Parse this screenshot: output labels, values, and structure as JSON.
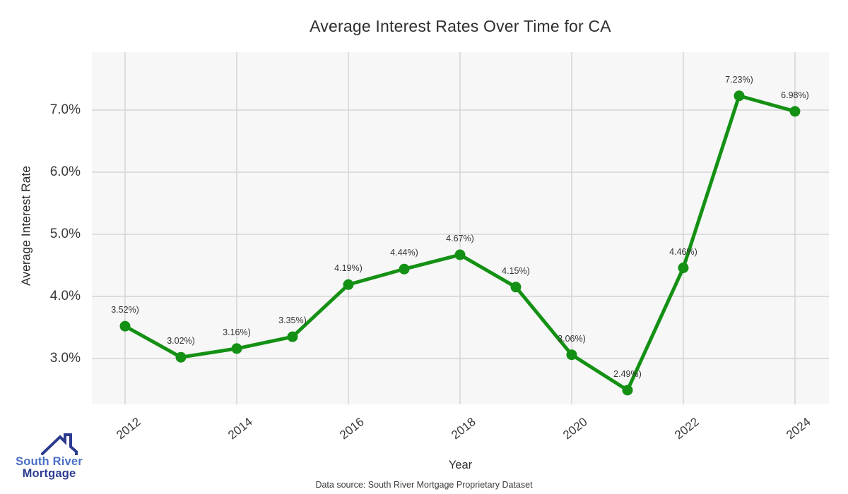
{
  "chart_data": {
    "type": "line",
    "title": "Average Interest Rates Over Time for CA",
    "xlabel": "Year",
    "ylabel": "Average Interest Rate",
    "x": [
      2012,
      2013,
      2014,
      2015,
      2016,
      2017,
      2018,
      2019,
      2020,
      2021,
      2022,
      2023,
      2024
    ],
    "values": [
      3.52,
      3.02,
      3.16,
      3.35,
      4.19,
      4.44,
      4.67,
      4.15,
      3.06,
      2.49,
      4.46,
      7.23,
      6.98
    ],
    "point_labels": [
      "3.52%)",
      "3.02%)",
      "3.16%)",
      "3.35%)",
      "4.19%)",
      "4.44%)",
      "4.67%)",
      "4.15%)",
      "3.06%)",
      "2.49%)",
      "4.46%)",
      "7.23%)",
      "6.98%)"
    ],
    "x_ticks": [
      {
        "value": 2012,
        "label": "2012"
      },
      {
        "value": 2014,
        "label": "2014"
      },
      {
        "value": 2016,
        "label": "2016"
      },
      {
        "value": 2018,
        "label": "2018"
      },
      {
        "value": 2020,
        "label": "2020"
      },
      {
        "value": 2022,
        "label": "2022"
      },
      {
        "value": 2024,
        "label": "2024"
      }
    ],
    "y_ticks": [
      {
        "value": 3.0,
        "label": "3.0%"
      },
      {
        "value": 4.0,
        "label": "4.0%"
      },
      {
        "value": 5.0,
        "label": "5.0%"
      },
      {
        "value": 6.0,
        "label": "6.0%"
      },
      {
        "value": 7.0,
        "label": "7.0%"
      }
    ],
    "xlim": [
      2011.405,
      2024.608
    ],
    "ylim": [
      2.261,
      7.932
    ],
    "grid": true,
    "legend": "none",
    "line_color": "#149114",
    "marker_color": "#149114",
    "plot_bg": "#f7f7f7",
    "grid_color": "#d6d6d6"
  },
  "footer": {
    "source_note": "Data source: South River Mortgage Proprietary Dataset"
  },
  "logo": {
    "line1": "South River",
    "line2": "Mortgage",
    "line1_color": "#4a6fc4",
    "line2_color": "#2c3b8f",
    "roof_color": "#2c3b8f"
  }
}
